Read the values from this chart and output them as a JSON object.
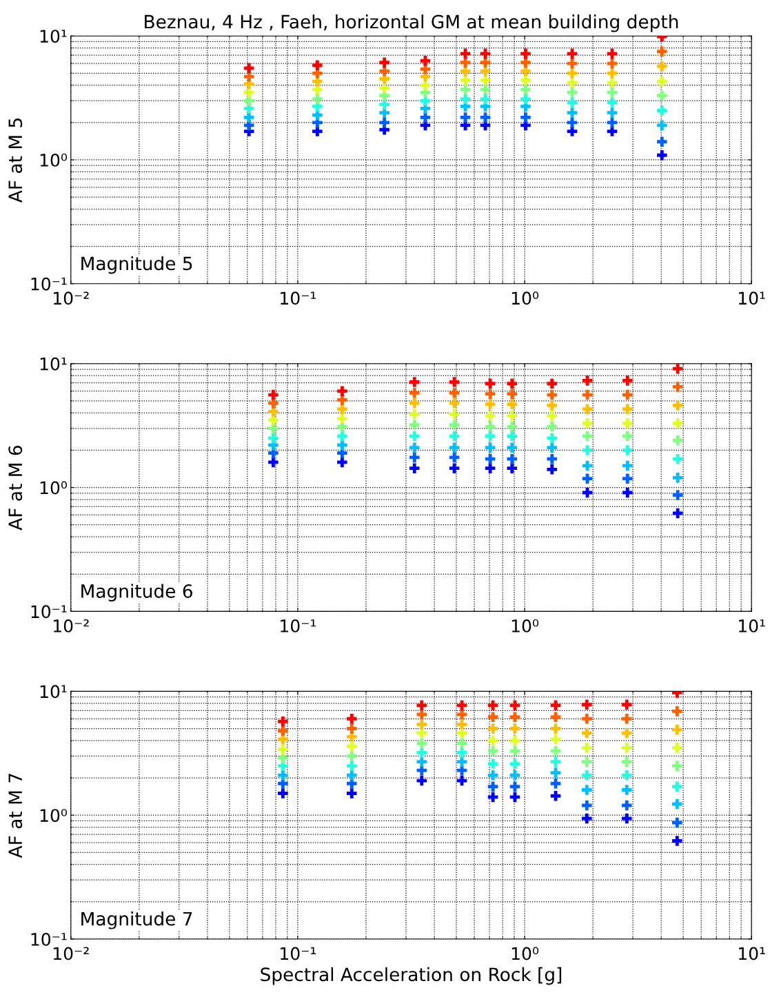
{
  "chart_data": [
    {
      "type": "scatter",
      "title": "Beznau, 4 Hz , Faeh, horizontal GM at mean building depth",
      "ylabel": "AF at M 5",
      "log": "xy",
      "grid": true,
      "marker": "cross",
      "x": [
        0.061,
        0.122,
        0.241,
        0.365,
        0.548,
        0.671,
        1.01,
        1.62,
        2.43,
        4.03
      ],
      "xlim": [
        0.01,
        10
      ],
      "ylim": [
        0.1,
        10
      ],
      "xticks": [
        {
          "value": 0.01,
          "label": "10⁻²"
        },
        {
          "value": 0.1,
          "label": "10⁻¹"
        },
        {
          "value": 1,
          "label": "10⁰"
        },
        {
          "value": 10,
          "label": "10¹"
        }
      ],
      "yticks": [
        {
          "value": 0.1,
          "label": "10⁻¹"
        },
        {
          "value": 1,
          "label": "10⁰"
        },
        {
          "value": 10,
          "label": "10¹"
        }
      ],
      "annotations": [
        "Magnitude 5"
      ],
      "series": [
        {
          "color": "#0000ff",
          "values": [
            1.7,
            1.7,
            1.75,
            1.9,
            1.9,
            1.9,
            1.9,
            1.7,
            1.7,
            1.09
          ]
        },
        {
          "color": "#0060ff",
          "values": [
            1.9,
            2.0,
            2.0,
            2.2,
            2.2,
            2.2,
            2.2,
            2.0,
            2.0,
            1.4
          ]
        },
        {
          "color": "#00bfff",
          "values": [
            2.2,
            2.3,
            2.4,
            2.6,
            2.7,
            2.7,
            2.7,
            2.4,
            2.4,
            1.9
          ]
        },
        {
          "color": "#20ffdf",
          "values": [
            2.6,
            2.7,
            2.8,
            3.0,
            3.1,
            3.1,
            3.1,
            2.9,
            2.9,
            2.5
          ]
        },
        {
          "color": "#80ff80",
          "values": [
            3.0,
            3.1,
            3.3,
            3.5,
            3.7,
            3.7,
            3.7,
            3.5,
            3.5,
            3.3
          ]
        },
        {
          "color": "#dfff20",
          "values": [
            3.5,
            3.7,
            3.8,
            4.0,
            4.4,
            4.4,
            4.4,
            4.2,
            4.2,
            4.3
          ]
        },
        {
          "color": "#ffbf00",
          "values": [
            4.1,
            4.3,
            4.5,
            4.7,
            5.2,
            5.2,
            5.2,
            5.0,
            5.0,
            5.7
          ]
        },
        {
          "color": "#ff6000",
          "values": [
            4.7,
            5.0,
            5.2,
            5.4,
            6.1,
            6.1,
            6.1,
            6.0,
            6.0,
            7.5
          ]
        },
        {
          "color": "#ff0000",
          "values": [
            5.5,
            5.8,
            6.1,
            6.3,
            7.2,
            7.2,
            7.2,
            7.2,
            7.2,
            9.9
          ]
        }
      ]
    },
    {
      "type": "scatter",
      "ylabel": "AF at M 6",
      "log": "xy",
      "grid": true,
      "marker": "cross",
      "x": [
        0.078,
        0.157,
        0.327,
        0.49,
        0.705,
        0.88,
        1.32,
        1.89,
        2.84,
        4.73
      ],
      "xlim": [
        0.01,
        10
      ],
      "ylim": [
        0.1,
        10
      ],
      "xticks": [
        {
          "value": 0.01,
          "label": "10⁻²"
        },
        {
          "value": 0.1,
          "label": "10⁻¹"
        },
        {
          "value": 1,
          "label": "10⁰"
        },
        {
          "value": 10,
          "label": "10¹"
        }
      ],
      "yticks": [
        {
          "value": 0.1,
          "label": "10⁻¹"
        },
        {
          "value": 1,
          "label": "10⁰"
        },
        {
          "value": 10,
          "label": "10¹"
        }
      ],
      "annotations": [
        "Magnitude 6"
      ],
      "series": [
        {
          "color": "#0000ff",
          "values": [
            1.6,
            1.6,
            1.43,
            1.43,
            1.43,
            1.43,
            1.4,
            0.91,
            0.91,
            0.62
          ]
        },
        {
          "color": "#0060ff",
          "values": [
            1.9,
            1.9,
            1.75,
            1.75,
            1.7,
            1.7,
            1.7,
            1.18,
            1.18,
            0.87
          ]
        },
        {
          "color": "#00bfff",
          "values": [
            2.2,
            2.2,
            2.1,
            2.1,
            2.1,
            2.1,
            2.1,
            1.5,
            1.5,
            1.2
          ]
        },
        {
          "color": "#20ffdf",
          "values": [
            2.5,
            2.6,
            2.6,
            2.6,
            2.6,
            2.6,
            2.5,
            2.0,
            2.0,
            1.7
          ]
        },
        {
          "color": "#80ff80",
          "values": [
            3.0,
            3.1,
            3.2,
            3.2,
            3.1,
            3.1,
            3.1,
            2.6,
            2.6,
            2.4
          ]
        },
        {
          "color": "#dfff20",
          "values": [
            3.5,
            3.6,
            3.9,
            3.9,
            3.8,
            3.8,
            3.8,
            3.3,
            3.3,
            3.3
          ]
        },
        {
          "color": "#ffbf00",
          "values": [
            4.1,
            4.3,
            4.8,
            4.8,
            4.7,
            4.7,
            4.6,
            4.3,
            4.3,
            4.6
          ]
        },
        {
          "color": "#ff6000",
          "values": [
            4.8,
            5.1,
            5.8,
            5.8,
            5.7,
            5.7,
            5.6,
            5.6,
            5.6,
            6.5
          ]
        },
        {
          "color": "#ff0000",
          "values": [
            5.6,
            6.0,
            7.1,
            7.1,
            6.9,
            6.9,
            6.9,
            7.3,
            7.3,
            9.1
          ]
        }
      ]
    },
    {
      "type": "scatter",
      "ylabel": "AF at M 7",
      "xlabel": "Spectral Acceleration on Rock [g]",
      "log": "xy",
      "grid": true,
      "marker": "cross",
      "x": [
        0.086,
        0.173,
        0.352,
        0.529,
        0.725,
        0.906,
        1.37,
        1.88,
        2.82,
        4.7
      ],
      "xlim": [
        0.01,
        10
      ],
      "ylim": [
        0.1,
        10
      ],
      "xticks": [
        {
          "value": 0.01,
          "label": "10⁻²"
        },
        {
          "value": 0.1,
          "label": "10⁻¹"
        },
        {
          "value": 1,
          "label": "10⁰"
        },
        {
          "value": 10,
          "label": "10¹"
        }
      ],
      "yticks": [
        {
          "value": 0.1,
          "label": "10⁻¹"
        },
        {
          "value": 1,
          "label": "10⁰"
        },
        {
          "value": 10,
          "label": "10¹"
        }
      ],
      "annotations": [
        "Magnitude 7"
      ],
      "series": [
        {
          "color": "#0000ff",
          "values": [
            1.5,
            1.5,
            1.9,
            1.9,
            1.4,
            1.4,
            1.43,
            0.94,
            0.94,
            0.62
          ]
        },
        {
          "color": "#0060ff",
          "values": [
            1.8,
            1.8,
            2.3,
            2.3,
            1.7,
            1.7,
            1.8,
            1.2,
            1.2,
            0.87
          ]
        },
        {
          "color": "#00bfff",
          "values": [
            2.1,
            2.1,
            2.7,
            2.7,
            2.1,
            2.1,
            2.2,
            1.6,
            1.6,
            1.23
          ]
        },
        {
          "color": "#20ffdf",
          "values": [
            2.5,
            2.5,
            3.2,
            3.2,
            2.6,
            2.6,
            2.7,
            2.1,
            2.1,
            1.7
          ]
        },
        {
          "color": "#80ff80",
          "values": [
            2.9,
            3.0,
            3.8,
            3.8,
            3.3,
            3.3,
            3.3,
            2.7,
            2.7,
            2.5
          ]
        },
        {
          "color": "#dfff20",
          "values": [
            3.4,
            3.6,
            4.6,
            4.6,
            4.0,
            4.0,
            4.1,
            3.5,
            3.5,
            3.5
          ]
        },
        {
          "color": "#ffbf00",
          "values": [
            4.1,
            4.3,
            5.4,
            5.4,
            5.0,
            5.0,
            5.0,
            4.6,
            4.6,
            4.9
          ]
        },
        {
          "color": "#ff6000",
          "values": [
            4.8,
            5.0,
            6.5,
            6.5,
            6.2,
            6.2,
            6.2,
            6.0,
            6.0,
            6.9
          ]
        },
        {
          "color": "#ff0000",
          "values": [
            5.7,
            6.0,
            7.7,
            7.7,
            7.7,
            7.7,
            7.7,
            7.8,
            7.8,
            9.75
          ]
        }
      ]
    }
  ]
}
